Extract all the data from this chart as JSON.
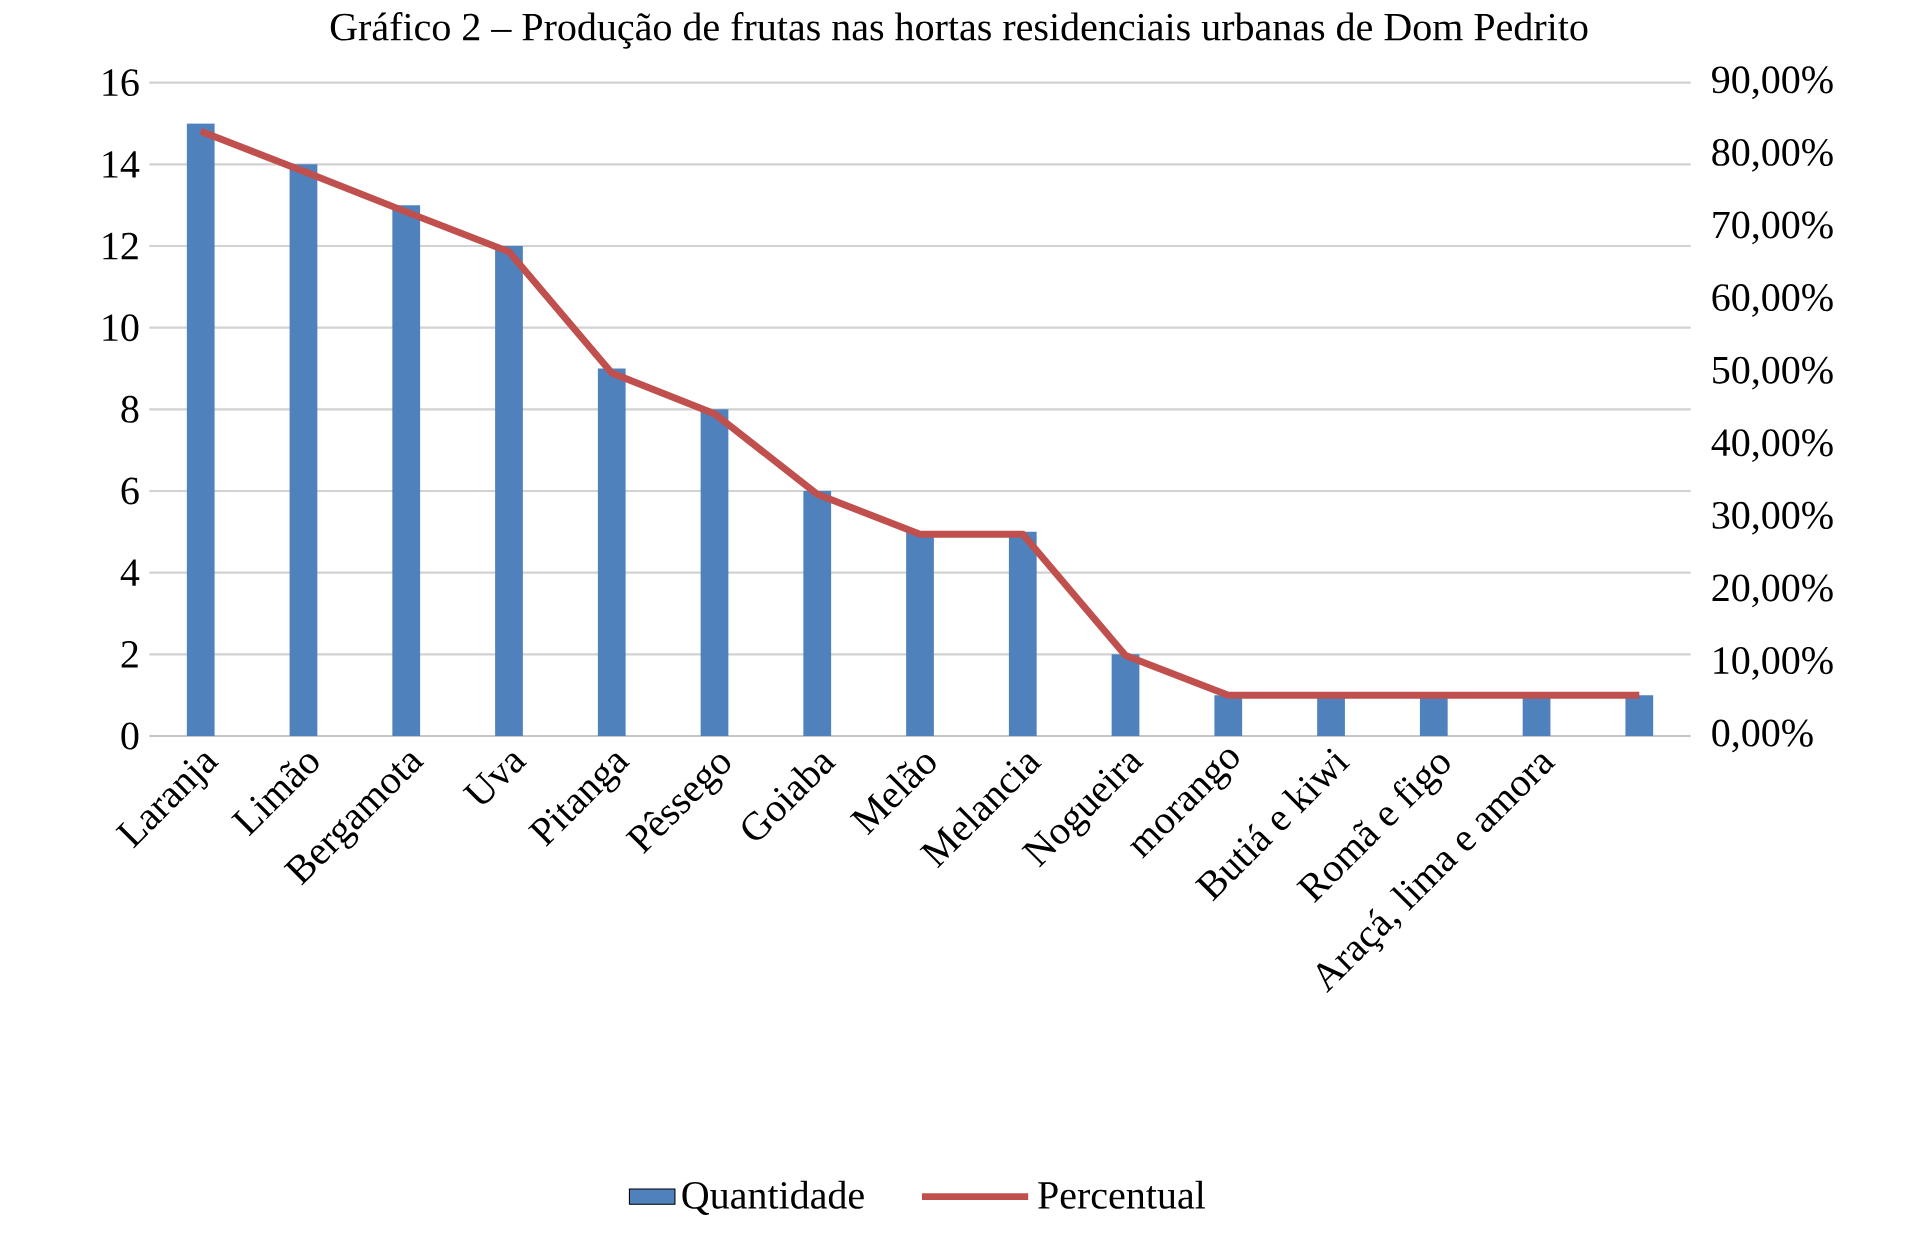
{
  "chart_data": {
    "type": "bar",
    "title": "Gráfico 2 – Produção de frutas nas hortas residenciais urbanas de Dom Pedrito",
    "categories": [
      "Laranja",
      "Limão",
      "Bergamota",
      "Uva",
      "Pitanga",
      "Pêssego",
      "Goiaba",
      "Melão",
      "Melancia",
      "Nogueira",
      "morango",
      "Butiá e kiwi",
      "Romã e figo",
      "Araçá, lima e amora",
      null
    ],
    "series": [
      {
        "name": "Quantidade",
        "color": "#4f81bd",
        "values": [
          15,
          14,
          13,
          12,
          9,
          8,
          6,
          5,
          5,
          2,
          1,
          1,
          1,
          1,
          1
        ]
      },
      {
        "name": "Percentual",
        "type": "line",
        "axis": "y2",
        "color": "#c0504d",
        "values": [
          83.3,
          77.8,
          72.2,
          66.7,
          50,
          44.4,
          33.3,
          27.8,
          27.8,
          11.1,
          5.6,
          5.6,
          5.6,
          5.6,
          5.6
        ]
      }
    ],
    "ylim": [
      0,
      16
    ],
    "yticks": [
      0,
      2,
      4,
      6,
      8,
      10,
      12,
      14,
      16
    ],
    "y2lim": [
      0,
      90
    ],
    "y2ticks": [
      {
        "value": 0,
        "label": "0,00%"
      },
      {
        "value": 10,
        "label": "10,00%"
      },
      {
        "value": 20,
        "label": "20,00%"
      },
      {
        "value": 30,
        "label": "30,00%"
      },
      {
        "value": 40,
        "label": "40,00%"
      },
      {
        "value": 50,
        "label": "50,00%"
      },
      {
        "value": 60,
        "label": "60,00%"
      },
      {
        "value": 70,
        "label": "70,00%"
      },
      {
        "value": 80,
        "label": "80,00%"
      },
      {
        "value": 90,
        "label": "90,00%"
      }
    ],
    "grid": "y",
    "legend": "bottom"
  }
}
